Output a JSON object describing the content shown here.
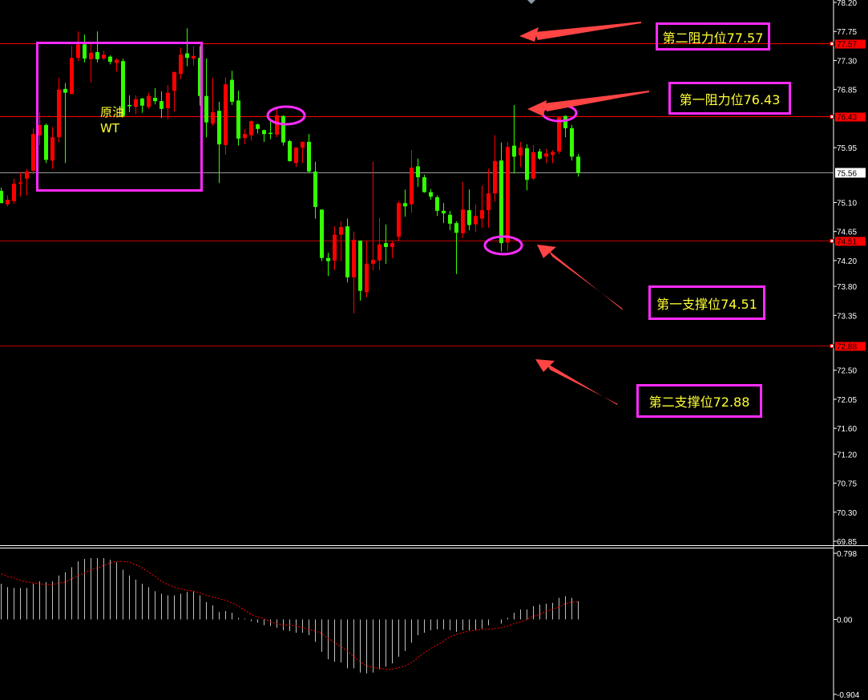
{
  "chart_data": [
    {
      "type": "candlestick",
      "title": "",
      "ylim": [
        69.85,
        78.2
      ],
      "y_ticks": [
        "78.20",
        "77.75",
        "77.30",
        "76.85",
        "75.95",
        "75.10",
        "74.65",
        "74.20",
        "73.80",
        "73.35",
        "72.50",
        "72.05",
        "71.60",
        "71.20",
        "70.75",
        "70.30",
        "69.85"
      ],
      "current_price": "75.56",
      "up_color": "#ff0000",
      "down_color": "#33ff00",
      "candle_format": [
        "open",
        "high",
        "low",
        "close"
      ],
      "candles": [
        [
          75.28,
          75.33,
          75.09,
          75.09
        ],
        [
          75.07,
          75.21,
          75.04,
          75.14
        ],
        [
          75.12,
          75.47,
          75.08,
          75.39
        ],
        [
          75.4,
          75.57,
          75.19,
          75.41
        ],
        [
          75.47,
          75.62,
          75.21,
          75.58
        ],
        [
          75.59,
          76.25,
          75.54,
          76.16
        ],
        [
          76.14,
          76.5,
          75.99,
          76.3
        ],
        [
          76.3,
          76.32,
          75.71,
          75.76
        ],
        [
          75.75,
          76.27,
          75.62,
          76.11
        ],
        [
          76.11,
          77.03,
          76.03,
          76.85
        ],
        [
          76.86,
          76.95,
          75.71,
          76.8
        ],
        [
          76.78,
          77.53,
          76.78,
          77.34
        ],
        [
          77.34,
          77.75,
          77.29,
          77.55
        ],
        [
          77.55,
          77.7,
          77.27,
          77.33
        ],
        [
          77.32,
          77.55,
          76.96,
          77.42
        ],
        [
          77.43,
          77.75,
          77.27,
          77.32
        ],
        [
          77.33,
          77.45,
          77.31,
          77.39
        ],
        [
          77.36,
          77.38,
          77.24,
          77.28
        ],
        [
          77.26,
          77.33,
          77.13,
          77.31
        ],
        [
          77.29,
          77.33,
          76.43,
          76.44
        ],
        [
          76.61,
          76.76,
          76.5,
          76.6
        ],
        [
          76.58,
          76.76,
          76.47,
          76.7
        ],
        [
          76.71,
          76.72,
          76.49,
          76.6
        ],
        [
          76.58,
          76.8,
          76.55,
          76.75
        ],
        [
          76.72,
          76.87,
          76.62,
          76.67
        ],
        [
          76.67,
          76.82,
          76.41,
          76.55
        ],
        [
          76.56,
          76.92,
          76.39,
          76.8
        ],
        [
          76.83,
          77.13,
          76.51,
          77.12
        ],
        [
          77.09,
          77.5,
          77.01,
          77.39
        ],
        [
          77.41,
          77.8,
          77.21,
          77.34
        ],
        [
          77.33,
          77.52,
          77.22,
          77.37
        ],
        [
          77.34,
          77.52,
          76.6,
          76.75
        ],
        [
          76.75,
          77.33,
          76.11,
          76.34
        ],
        [
          76.32,
          77.03,
          76.29,
          76.5
        ],
        [
          76.52,
          76.66,
          75.4,
          76.0
        ],
        [
          75.99,
          77.04,
          75.84,
          76.93
        ],
        [
          77.0,
          77.14,
          76.61,
          76.66
        ],
        [
          76.68,
          76.83,
          75.98,
          76.09
        ],
        [
          76.1,
          76.24,
          76.0,
          76.16
        ],
        [
          76.14,
          76.37,
          76.06,
          76.36
        ],
        [
          76.31,
          76.32,
          76.17,
          76.24
        ],
        [
          76.22,
          76.23,
          76.04,
          76.16
        ],
        [
          76.18,
          76.4,
          76.08,
          76.17
        ],
        [
          76.15,
          76.55,
          76.11,
          76.45
        ],
        [
          76.44,
          76.45,
          75.98,
          76.03
        ],
        [
          76.05,
          76.07,
          75.73,
          75.74
        ],
        [
          75.71,
          75.96,
          75.65,
          75.95
        ],
        [
          75.95,
          76.04,
          75.71,
          76.04
        ],
        [
          76.04,
          76.16,
          75.55,
          75.58
        ],
        [
          75.58,
          75.73,
          74.85,
          75.03
        ],
        [
          74.99,
          74.99,
          74.19,
          74.24
        ],
        [
          74.24,
          74.32,
          73.96,
          74.19
        ],
        [
          74.2,
          74.73,
          74.05,
          74.6
        ],
        [
          74.6,
          74.81,
          74.19,
          74.72
        ],
        [
          74.73,
          74.85,
          73.86,
          73.94
        ],
        [
          73.94,
          74.65,
          73.38,
          74.52
        ],
        [
          74.51,
          74.51,
          73.58,
          73.73
        ],
        [
          73.71,
          74.5,
          73.63,
          74.15
        ],
        [
          74.15,
          75.73,
          74.05,
          74.21
        ],
        [
          74.2,
          74.86,
          74.05,
          74.45
        ],
        [
          74.47,
          74.76,
          74.15,
          74.41
        ],
        [
          74.41,
          74.5,
          74.24,
          74.47
        ],
        [
          74.57,
          75.12,
          74.51,
          75.09
        ],
        [
          75.09,
          75.3,
          74.88,
          75.04
        ],
        [
          75.07,
          75.91,
          74.94,
          75.64
        ],
        [
          75.66,
          75.78,
          75.34,
          75.49
        ],
        [
          75.49,
          75.53,
          75.25,
          75.26
        ],
        [
          75.26,
          75.31,
          75.14,
          75.19
        ],
        [
          75.18,
          75.21,
          74.89,
          74.97
        ],
        [
          74.97,
          75.09,
          74.78,
          74.93
        ],
        [
          74.91,
          74.97,
          74.67,
          74.77
        ],
        [
          74.78,
          74.81,
          73.99,
          74.63
        ],
        [
          74.62,
          75.42,
          74.55,
          74.99
        ],
        [
          74.98,
          75.3,
          74.67,
          74.75
        ],
        [
          74.76,
          75.07,
          74.64,
          74.89
        ],
        [
          74.85,
          75.36,
          74.71,
          74.98
        ],
        [
          74.98,
          75.62,
          74.71,
          75.24
        ],
        [
          75.24,
          76.14,
          75.11,
          75.74
        ],
        [
          75.75,
          76.03,
          74.34,
          74.47
        ],
        [
          74.48,
          76.04,
          74.35,
          75.96
        ],
        [
          75.98,
          76.61,
          75.55,
          75.81
        ],
        [
          75.83,
          76.04,
          75.65,
          75.95
        ],
        [
          75.94,
          76.0,
          75.29,
          75.45
        ],
        [
          75.47,
          75.99,
          75.45,
          75.88
        ],
        [
          75.89,
          75.93,
          75.76,
          75.78
        ],
        [
          75.81,
          75.93,
          75.71,
          75.86
        ],
        [
          75.84,
          75.91,
          75.71,
          75.88
        ],
        [
          75.89,
          76.44,
          75.85,
          76.42
        ],
        [
          76.44,
          76.45,
          76.11,
          76.25
        ],
        [
          76.25,
          76.3,
          75.75,
          75.81
        ],
        [
          75.81,
          75.85,
          75.5,
          75.56
        ]
      ],
      "levels": [
        {
          "price": 77.57,
          "label": "77.57",
          "annotation": "第二阻力位77.57",
          "color": "#ff0000"
        },
        {
          "price": 76.43,
          "label": "76.43",
          "annotation": "第一阻力位76.43",
          "color": "#ff0000"
        },
        {
          "price": 74.51,
          "label": "74.51",
          "annotation": "第一支撑位74.51",
          "color": "#ff0000"
        },
        {
          "price": 72.88,
          "label": "72.88",
          "annotation": "第二支撑位72.88",
          "color": "#ff0000"
        }
      ],
      "box_note": [
        "原油",
        "WT"
      ]
    },
    {
      "type": "bar+line",
      "ylim": [
        -0.904,
        0.798
      ],
      "y_ticks": [
        "0.798",
        "0.00",
        "-0.904"
      ],
      "histogram": [
        0.43,
        0.39,
        0.38,
        0.38,
        0.38,
        0.43,
        0.46,
        0.45,
        0.46,
        0.53,
        0.57,
        0.63,
        0.7,
        0.73,
        0.74,
        0.74,
        0.74,
        0.72,
        0.69,
        0.6,
        0.53,
        0.48,
        0.43,
        0.39,
        0.34,
        0.31,
        0.29,
        0.29,
        0.31,
        0.33,
        0.34,
        0.29,
        0.21,
        0.17,
        0.09,
        0.1,
        0.08,
        0.02,
        0.01,
        -0.02,
        -0.04,
        -0.07,
        -0.08,
        -0.1,
        -0.13,
        -0.14,
        -0.16,
        -0.16,
        -0.19,
        -0.27,
        -0.39,
        -0.48,
        -0.51,
        -0.52,
        -0.59,
        -0.59,
        -0.64,
        -0.65,
        -0.64,
        -0.6,
        -0.57,
        -0.53,
        -0.45,
        -0.38,
        -0.28,
        -0.19,
        -0.16,
        -0.13,
        -0.12,
        -0.12,
        -0.13,
        -0.15,
        -0.13,
        -0.13,
        -0.13,
        -0.11,
        -0.07,
        0.0,
        -0.05,
        0.02,
        0.08,
        0.12,
        0.12,
        0.16,
        0.18,
        0.19,
        0.2,
        0.26,
        0.28,
        0.26,
        0.22
      ],
      "signal": [
        0.55,
        0.52,
        0.5,
        0.47,
        0.45,
        0.44,
        0.43,
        0.42,
        0.42,
        0.44,
        0.45,
        0.49,
        0.53,
        0.56,
        0.6,
        0.62,
        0.65,
        0.68,
        0.7,
        0.7,
        0.69,
        0.66,
        0.62,
        0.57,
        0.52,
        0.46,
        0.42,
        0.39,
        0.37,
        0.35,
        0.34,
        0.32,
        0.29,
        0.27,
        0.25,
        0.23,
        0.2,
        0.16,
        0.11,
        0.06,
        0.03,
        0.01,
        -0.03,
        -0.05,
        -0.07,
        -0.07,
        -0.08,
        -0.1,
        -0.12,
        -0.14,
        -0.17,
        -0.23,
        -0.28,
        -0.33,
        -0.38,
        -0.45,
        -0.51,
        -0.56,
        -0.58,
        -0.59,
        -0.6,
        -0.6,
        -0.58,
        -0.56,
        -0.52,
        -0.46,
        -0.4,
        -0.35,
        -0.31,
        -0.26,
        -0.21,
        -0.18,
        -0.16,
        -0.14,
        -0.13,
        -0.12,
        -0.12,
        -0.11,
        -0.1,
        -0.08,
        -0.05,
        -0.03,
        0.0,
        0.04,
        0.06,
        0.1,
        0.12,
        0.15,
        0.19,
        0.21,
        0.21
      ],
      "histogram_color": "#c0c0c0",
      "signal_color": "#ff0000"
    }
  ]
}
